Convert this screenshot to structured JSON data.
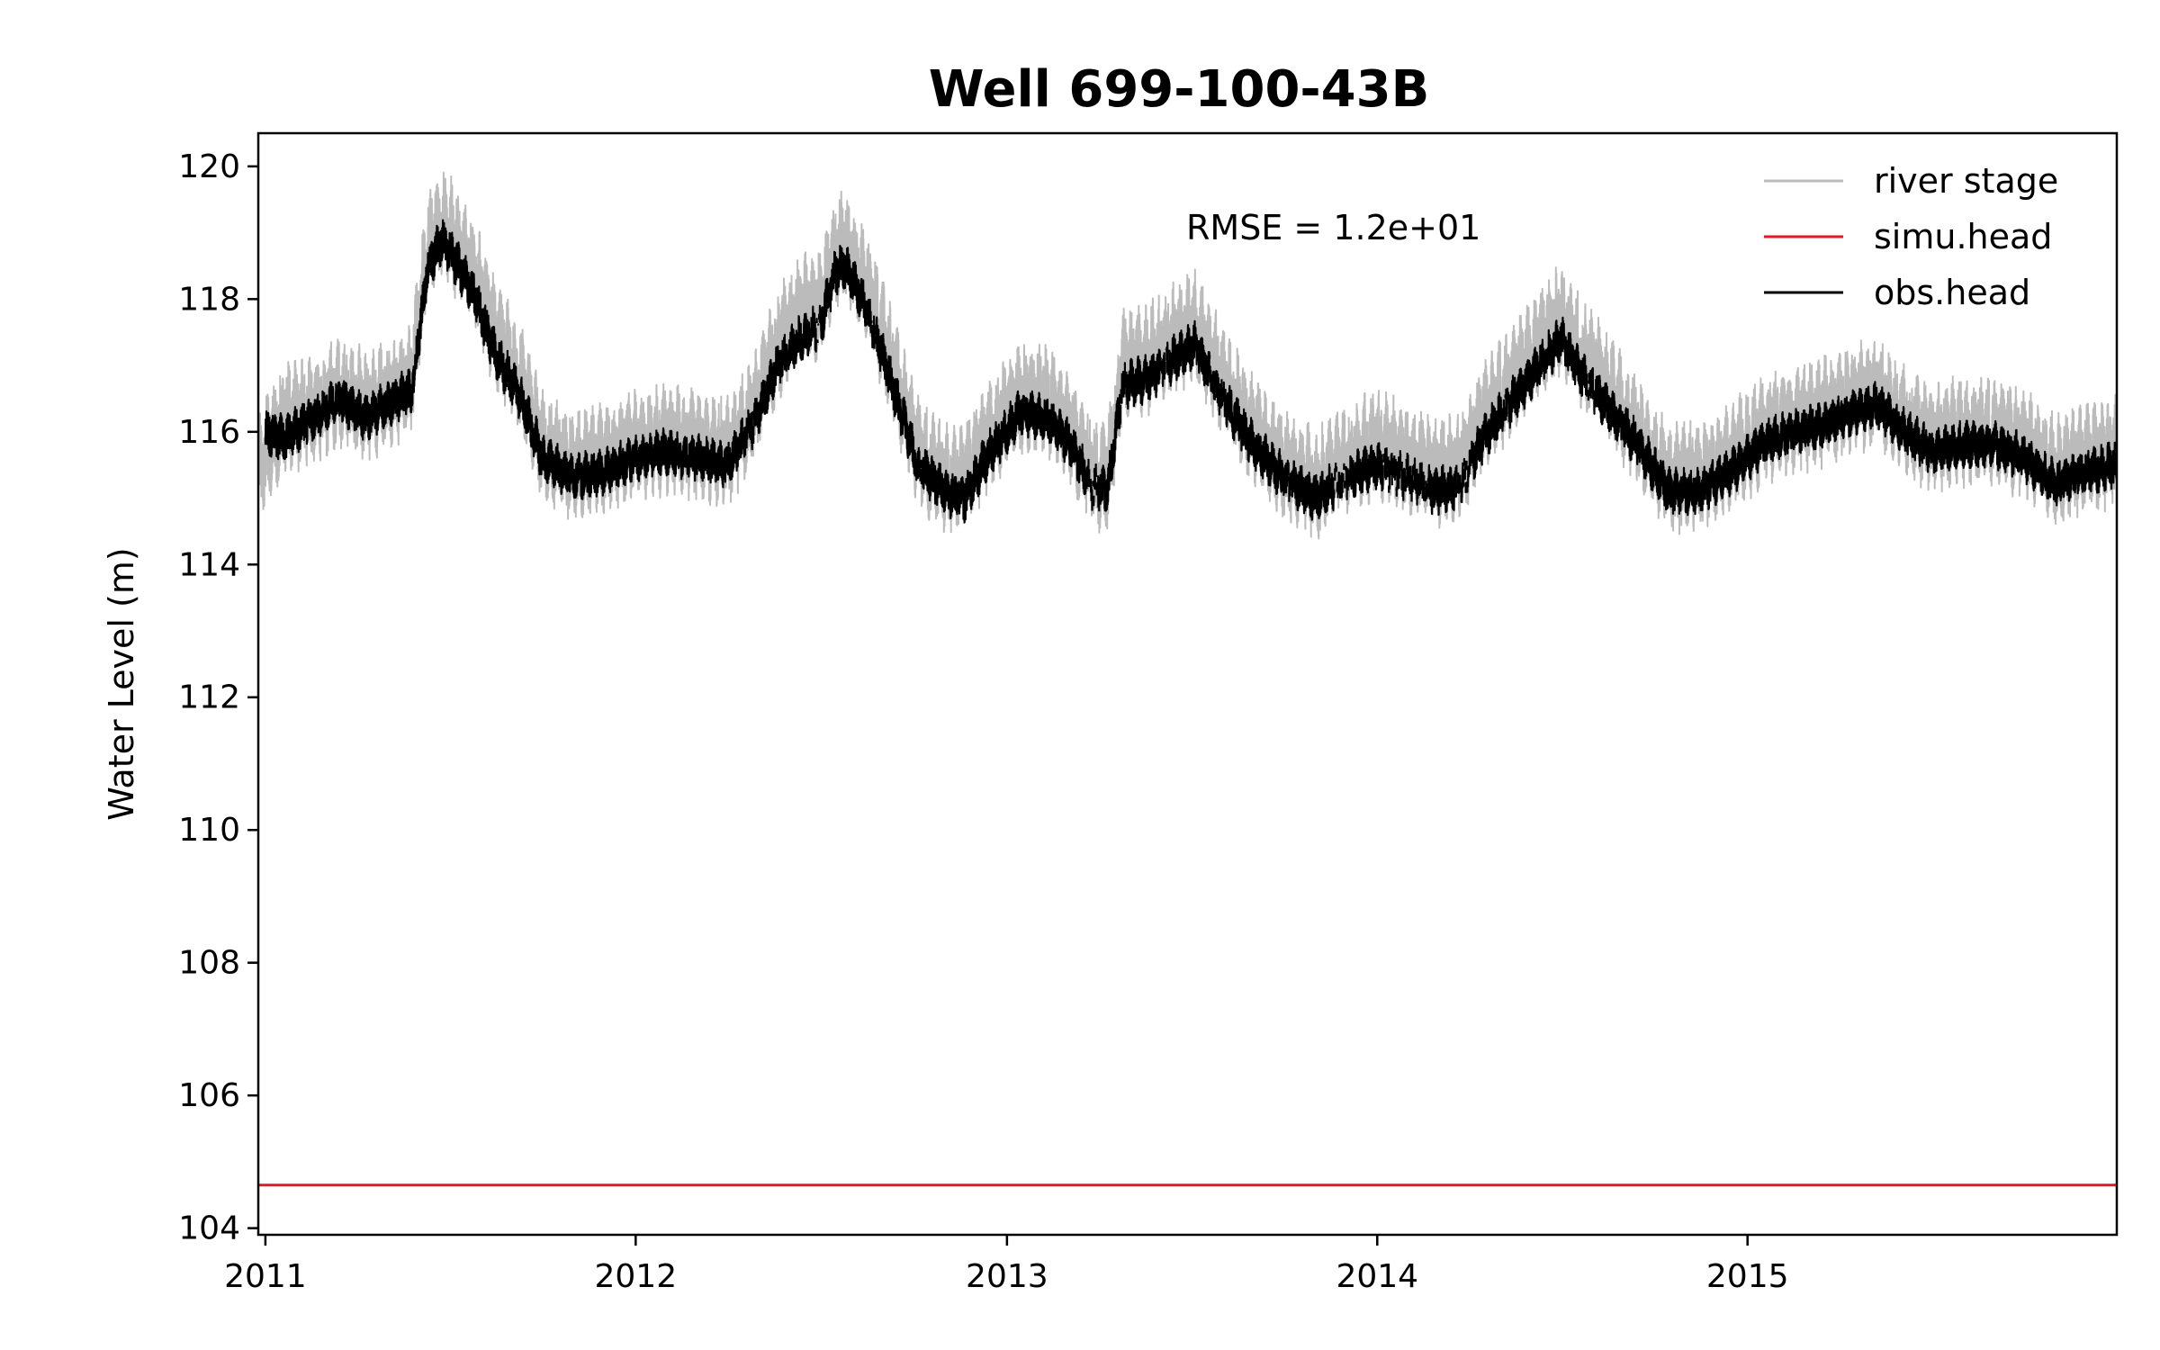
{
  "chart_data": {
    "type": "line",
    "title": "Well 699-100-43B",
    "xlabel": "",
    "ylabel": "Water Level (m)",
    "xlim": [
      "2010-12-25",
      "2015-12-31"
    ],
    "ylim": [
      103.9,
      120.5
    ],
    "yticks": [
      104,
      106,
      108,
      110,
      112,
      114,
      116,
      118,
      120
    ],
    "xticks": [
      {
        "date": "2011-01-01",
        "label": "2011"
      },
      {
        "date": "2012-01-01",
        "label": "2012"
      },
      {
        "date": "2013-01-01",
        "label": "2013"
      },
      {
        "date": "2014-01-01",
        "label": "2014"
      },
      {
        "date": "2015-01-01",
        "label": "2015"
      }
    ],
    "annotation": "RMSE = 1.2e+01",
    "legend": {
      "placement": "top-right",
      "entries": [
        {
          "label": "river stage",
          "color": "#bbbbbb"
        },
        {
          "label": "simu.head",
          "color": "#e31a1c"
        },
        {
          "label": "obs.head",
          "color": "#000000"
        }
      ]
    },
    "series": [
      {
        "name": "river stage",
        "color": "#bbbbbb",
        "style": "solid",
        "points": [
          [
            "2010-12-25",
            115.5
          ],
          [
            "2011-01-20",
            116.2
          ],
          [
            "2011-02-15",
            116.3
          ],
          [
            "2011-03-15",
            116.6
          ],
          [
            "2011-04-10",
            116.4
          ],
          [
            "2011-05-10",
            116.6
          ],
          [
            "2011-05-25",
            116.8
          ],
          [
            "2011-06-10",
            118.8
          ],
          [
            "2011-06-25",
            119.2
          ],
          [
            "2011-07-10",
            118.8
          ],
          [
            "2011-07-25",
            118.4
          ],
          [
            "2011-08-15",
            117.5
          ],
          [
            "2011-09-10",
            116.8
          ],
          [
            "2011-10-01",
            115.8
          ],
          [
            "2011-11-01",
            115.5
          ],
          [
            "2011-12-01",
            115.6
          ],
          [
            "2012-01-01",
            115.8
          ],
          [
            "2012-02-01",
            115.9
          ],
          [
            "2012-03-01",
            115.8
          ],
          [
            "2012-04-01",
            115.7
          ],
          [
            "2012-04-25",
            116.3
          ],
          [
            "2012-05-20",
            117.3
          ],
          [
            "2012-06-10",
            117.8
          ],
          [
            "2012-07-01",
            117.9
          ],
          [
            "2012-07-15",
            118.7
          ],
          [
            "2012-07-25",
            118.8
          ],
          [
            "2012-08-15",
            118.2
          ],
          [
            "2012-09-10",
            117.0
          ],
          [
            "2012-10-05",
            115.7
          ],
          [
            "2012-11-01",
            115.3
          ],
          [
            "2012-11-20",
            115.3
          ],
          [
            "2012-12-15",
            116.0
          ],
          [
            "2013-01-15",
            116.5
          ],
          [
            "2013-02-10",
            116.5
          ],
          [
            "2013-03-05",
            116.0
          ],
          [
            "2013-03-25",
            115.4
          ],
          [
            "2013-04-10",
            115.3
          ],
          [
            "2013-04-25",
            117.0
          ],
          [
            "2013-05-20",
            117.1
          ],
          [
            "2013-06-15",
            117.4
          ],
          [
            "2013-07-05",
            117.6
          ],
          [
            "2013-08-01",
            116.8
          ],
          [
            "2013-09-01",
            116.0
          ],
          [
            "2013-10-01",
            115.5
          ],
          [
            "2013-11-01",
            115.2
          ],
          [
            "2013-12-01",
            115.6
          ],
          [
            "2014-01-01",
            115.8
          ],
          [
            "2014-02-01",
            115.6
          ],
          [
            "2014-03-01",
            115.4
          ],
          [
            "2014-03-25",
            115.5
          ],
          [
            "2014-04-15",
            116.2
          ],
          [
            "2014-05-15",
            116.8
          ],
          [
            "2014-06-15",
            117.4
          ],
          [
            "2014-07-01",
            117.7
          ],
          [
            "2014-07-20",
            117.2
          ],
          [
            "2014-08-15",
            116.7
          ],
          [
            "2014-09-15",
            116.0
          ],
          [
            "2014-10-15",
            115.3
          ],
          [
            "2014-11-15",
            115.3
          ],
          [
            "2014-12-15",
            115.6
          ],
          [
            "2015-01-15",
            116.0
          ],
          [
            "2015-02-15",
            116.2
          ],
          [
            "2015-03-15",
            116.3
          ],
          [
            "2015-04-15",
            116.5
          ],
          [
            "2015-05-10",
            116.6
          ],
          [
            "2015-06-05",
            116.2
          ],
          [
            "2015-07-01",
            115.9
          ],
          [
            "2015-08-01",
            116.0
          ],
          [
            "2015-09-01",
            116.0
          ],
          [
            "2015-10-01",
            115.8
          ],
          [
            "2015-11-01",
            115.4
          ],
          [
            "2015-12-01",
            115.6
          ],
          [
            "2015-12-31",
            115.7
          ]
        ]
      },
      {
        "name": "simu.head",
        "color": "#e31a1c",
        "style": "solid",
        "points": [
          [
            "2010-12-25",
            104.65
          ],
          [
            "2015-12-31",
            104.65
          ]
        ]
      },
      {
        "name": "obs.head",
        "color": "#000000",
        "style": "solid",
        "points": [
          [
            "2011-01-01",
            116.0
          ],
          [
            "2011-01-20",
            115.9
          ],
          [
            "2011-02-15",
            116.2
          ],
          [
            "2011-03-15",
            116.5
          ],
          [
            "2011-04-10",
            116.2
          ],
          [
            "2011-05-10",
            116.5
          ],
          [
            "2011-05-25",
            116.6
          ],
          [
            "2011-06-10",
            118.5
          ],
          [
            "2011-06-25",
            118.9
          ],
          [
            "2011-07-10",
            118.5
          ],
          [
            "2011-07-25",
            118.1
          ],
          [
            "2011-08-15",
            117.2
          ],
          [
            "2011-09-10",
            116.5
          ],
          [
            "2011-10-01",
            115.6
          ],
          [
            "2011-11-01",
            115.3
          ],
          [
            "2011-12-01",
            115.4
          ],
          [
            "2012-01-01",
            115.6
          ],
          [
            "2012-02-01",
            115.7
          ],
          [
            "2012-03-01",
            115.6
          ],
          [
            "2012-04-01",
            115.5
          ],
          [
            "2012-04-25",
            116.1
          ],
          [
            "2012-05-20",
            117.0
          ],
          [
            "2012-06-10",
            117.4
          ],
          [
            "2012-07-01",
            117.6
          ],
          [
            "2012-07-15",
            118.4
          ],
          [
            "2012-07-25",
            118.5
          ],
          [
            "2012-08-15",
            117.9
          ],
          [
            "2012-09-10",
            116.7
          ],
          [
            "2012-10-05",
            115.5
          ],
          [
            "2012-11-01",
            115.1
          ],
          [
            "2012-11-20",
            115.0
          ],
          [
            "2012-12-15",
            115.7
          ],
          [
            "2013-01-15",
            116.3
          ],
          [
            "2013-02-10",
            116.2
          ],
          [
            "2013-03-05",
            115.8
          ],
          [
            "2013-03-25",
            115.2
          ],
          [
            "2013-04-10",
            115.1
          ],
          [
            "2013-04-25",
            116.7
          ],
          [
            "2013-05-20",
            116.8
          ],
          [
            "2013-06-15",
            117.1
          ],
          [
            "2013-07-05",
            117.3
          ],
          [
            "2013-08-01",
            116.5
          ],
          [
            "2013-09-01",
            115.8
          ],
          [
            "2013-10-01",
            115.3
          ],
          [
            "2013-11-01",
            115.0
          ],
          [
            "2013-12-01",
            115.3
          ],
          [
            "2014-01-01",
            115.5
          ],
          [
            "2014-02-01",
            115.3
          ],
          [
            "2014-03-01",
            115.1
          ],
          [
            "2014-03-25",
            115.2
          ],
          [
            "2014-04-15",
            115.9
          ],
          [
            "2014-05-15",
            116.5
          ],
          [
            "2014-06-15",
            117.1
          ],
          [
            "2014-07-01",
            117.4
          ],
          [
            "2014-07-20",
            116.9
          ],
          [
            "2014-08-15",
            116.4
          ],
          [
            "2014-09-15",
            115.8
          ],
          [
            "2014-10-15",
            115.1
          ],
          [
            "2014-11-15",
            115.1
          ],
          [
            "2014-12-15",
            115.4
          ],
          [
            "2015-01-15",
            115.8
          ],
          [
            "2015-02-15",
            116.0
          ],
          [
            "2015-03-15",
            116.1
          ],
          [
            "2015-04-15",
            116.3
          ],
          [
            "2015-05-10",
            116.4
          ],
          [
            "2015-06-05",
            116.0
          ],
          [
            "2015-07-01",
            115.7
          ],
          [
            "2015-08-01",
            115.8
          ],
          [
            "2015-09-01",
            115.8
          ],
          [
            "2015-10-01",
            115.6
          ],
          [
            "2015-11-01",
            115.2
          ],
          [
            "2015-12-01",
            115.4
          ],
          [
            "2015-12-31",
            115.5
          ]
        ]
      }
    ]
  }
}
